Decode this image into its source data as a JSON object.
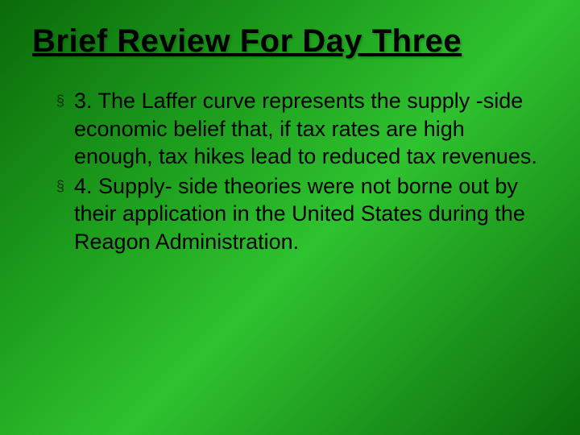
{
  "slide": {
    "background_gradient": [
      "#0a6b0a",
      "#1fa31f",
      "#2fc22f",
      "#0a6b0a"
    ],
    "title": "Brief Review For Day Three",
    "title_color": "#000000",
    "title_fontsize": 40,
    "title_underline": true,
    "bullets": [
      {
        "marker": "§",
        "text": "3. The Laffer curve represents the supply -side economic belief that, if tax rates are high enough, tax hikes lead to reduced tax revenues."
      },
      {
        "marker": "§",
        "text": "4. Supply- side theories were not borne out by their application in the United States during the Reagon Administration."
      }
    ],
    "bullet_marker_color": "#003300",
    "bullet_text_color": "#000000",
    "bullet_fontsize": 27
  }
}
